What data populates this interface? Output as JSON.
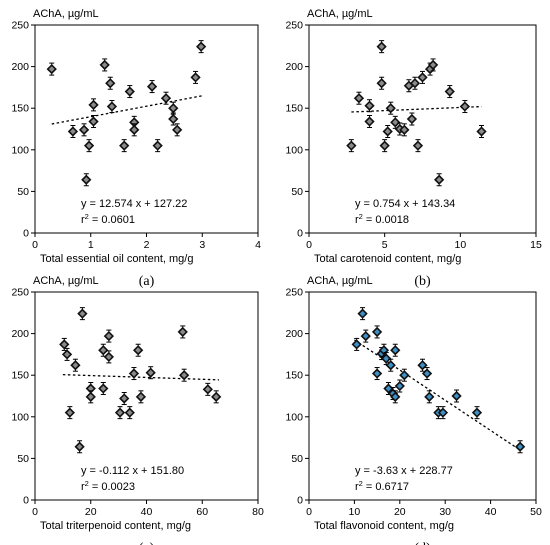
{
  "chart_data": [
    {
      "type": "scatter",
      "panel_label": "(a)",
      "ylabel": "AChA, µg/mL",
      "xlabel": "Total essential oil content, mg/g",
      "xlim": [
        0,
        4
      ],
      "ylim": [
        0,
        250
      ],
      "xticks": [
        "0",
        "1",
        "2",
        "3",
        "4"
      ],
      "yticks": [
        "0",
        "50",
        "100",
        "150",
        "200",
        "250"
      ],
      "marker_color": "#8a8a8a",
      "equation": "y = 12.574 x + 127.22",
      "r2_label": "r",
      "r2_value": " = 0.0601",
      "trend": {
        "slope": 12.574,
        "intercept": 127.22,
        "x_from": 0.3,
        "x_to": 3.0
      },
      "points": [
        {
          "x": 0.3,
          "y": 197
        },
        {
          "x": 0.68,
          "y": 122
        },
        {
          "x": 0.88,
          "y": 124
        },
        {
          "x": 0.92,
          "y": 64
        },
        {
          "x": 0.97,
          "y": 105
        },
        {
          "x": 1.05,
          "y": 154
        },
        {
          "x": 1.05,
          "y": 134
        },
        {
          "x": 1.25,
          "y": 202
        },
        {
          "x": 1.35,
          "y": 180
        },
        {
          "x": 1.38,
          "y": 152
        },
        {
          "x": 1.6,
          "y": 105
        },
        {
          "x": 1.7,
          "y": 170
        },
        {
          "x": 1.78,
          "y": 133
        },
        {
          "x": 1.78,
          "y": 124
        },
        {
          "x": 2.1,
          "y": 176
        },
        {
          "x": 2.2,
          "y": 105
        },
        {
          "x": 2.35,
          "y": 162
        },
        {
          "x": 2.48,
          "y": 150
        },
        {
          "x": 2.48,
          "y": 137
        },
        {
          "x": 2.55,
          "y": 124
        },
        {
          "x": 2.88,
          "y": 187
        },
        {
          "x": 2.98,
          "y": 224
        }
      ]
    },
    {
      "type": "scatter",
      "panel_label": "(b)",
      "ylabel": "AChA, µg/mL",
      "xlabel": "Total carotenoid content, mg/g",
      "xlim": [
        0,
        15
      ],
      "ylim": [
        0,
        250
      ],
      "xticks": [
        "0",
        "5",
        "10",
        "15"
      ],
      "yticks": [
        "0",
        "50",
        "100",
        "150",
        "200",
        "250"
      ],
      "marker_color": "#8a8a8a",
      "equation": "y = 0.754 x + 143.34",
      "r2_label": "r",
      "r2_value": " = 0.0018",
      "trend": {
        "slope": 0.754,
        "intercept": 143.34,
        "x_from": 2.8,
        "x_to": 11.4
      },
      "points": [
        {
          "x": 2.8,
          "y": 105
        },
        {
          "x": 3.3,
          "y": 162
        },
        {
          "x": 4.0,
          "y": 153
        },
        {
          "x": 4.0,
          "y": 134
        },
        {
          "x": 4.8,
          "y": 180
        },
        {
          "x": 4.8,
          "y": 224
        },
        {
          "x": 5.0,
          "y": 105
        },
        {
          "x": 5.2,
          "y": 122
        },
        {
          "x": 5.4,
          "y": 150
        },
        {
          "x": 5.7,
          "y": 133
        },
        {
          "x": 6.0,
          "y": 125
        },
        {
          "x": 6.3,
          "y": 124
        },
        {
          "x": 6.6,
          "y": 177
        },
        {
          "x": 6.8,
          "y": 137
        },
        {
          "x": 7.0,
          "y": 180
        },
        {
          "x": 7.2,
          "y": 105
        },
        {
          "x": 7.5,
          "y": 187
        },
        {
          "x": 8.0,
          "y": 197
        },
        {
          "x": 8.2,
          "y": 202
        },
        {
          "x": 8.6,
          "y": 64
        },
        {
          "x": 9.3,
          "y": 170
        },
        {
          "x": 10.3,
          "y": 152
        },
        {
          "x": 11.4,
          "y": 122
        }
      ]
    },
    {
      "type": "scatter",
      "panel_label": "(c)",
      "ylabel": "AChA, µg/mL",
      "xlabel": "Total triterpenoid content, mg/g",
      "xlim": [
        0,
        80
      ],
      "ylim": [
        0,
        250
      ],
      "xticks": [
        "0",
        "20",
        "40",
        "60",
        "80"
      ],
      "yticks": [
        "0",
        "50",
        "100",
        "150",
        "200",
        "250"
      ],
      "marker_color": "#8a8a8a",
      "equation": "y = -0.112 x + 151.80",
      "r2_label": "r",
      "r2_value": " = 0.0023",
      "trend": {
        "slope": -0.112,
        "intercept": 151.8,
        "x_from": 10,
        "x_to": 66
      },
      "points": [
        {
          "x": 10.5,
          "y": 187
        },
        {
          "x": 11.5,
          "y": 175
        },
        {
          "x": 12.5,
          "y": 105
        },
        {
          "x": 14.5,
          "y": 162
        },
        {
          "x": 16.0,
          "y": 64
        },
        {
          "x": 17.0,
          "y": 224
        },
        {
          "x": 20.0,
          "y": 134
        },
        {
          "x": 20.0,
          "y": 124
        },
        {
          "x": 24.5,
          "y": 180
        },
        {
          "x": 24.5,
          "y": 134
        },
        {
          "x": 26.5,
          "y": 197
        },
        {
          "x": 26.5,
          "y": 172
        },
        {
          "x": 30.5,
          "y": 105
        },
        {
          "x": 32.0,
          "y": 122
        },
        {
          "x": 34.0,
          "y": 105
        },
        {
          "x": 35.5,
          "y": 152
        },
        {
          "x": 37.0,
          "y": 180
        },
        {
          "x": 38.0,
          "y": 124
        },
        {
          "x": 41.5,
          "y": 153
        },
        {
          "x": 53.0,
          "y": 202
        },
        {
          "x": 53.5,
          "y": 150
        },
        {
          "x": 62.0,
          "y": 133
        },
        {
          "x": 65.0,
          "y": 124
        }
      ]
    },
    {
      "type": "scatter",
      "panel_label": "(d)",
      "ylabel": "AChA, µg/mL",
      "xlabel": "Total flavonoid content, mg/g",
      "xlim": [
        0,
        50
      ],
      "ylim": [
        0,
        250
      ],
      "xticks": [
        "0",
        "10",
        "20",
        "30",
        "40",
        "50"
      ],
      "yticks": [
        "0",
        "50",
        "100",
        "150",
        "200",
        "250"
      ],
      "marker_color": "#3d8fc4",
      "equation": "y = -3.63 x + 228.77",
      "r2_label": "r",
      "r2_value": " = 0.6717",
      "trend": {
        "slope": -3.63,
        "intercept": 228.77,
        "x_from": 10,
        "x_to": 46.5
      },
      "points": [
        {
          "x": 10.5,
          "y": 187
        },
        {
          "x": 11.8,
          "y": 224
        },
        {
          "x": 12.5,
          "y": 197
        },
        {
          "x": 15.0,
          "y": 202
        },
        {
          "x": 15.0,
          "y": 152
        },
        {
          "x": 16.0,
          "y": 176
        },
        {
          "x": 16.5,
          "y": 180
        },
        {
          "x": 17.0,
          "y": 170
        },
        {
          "x": 17.5,
          "y": 134
        },
        {
          "x": 18.0,
          "y": 162
        },
        {
          "x": 18.5,
          "y": 128
        },
        {
          "x": 19.0,
          "y": 180
        },
        {
          "x": 19.0,
          "y": 124
        },
        {
          "x": 20.0,
          "y": 137
        },
        {
          "x": 21.0,
          "y": 150
        },
        {
          "x": 25.0,
          "y": 162
        },
        {
          "x": 26.0,
          "y": 152
        },
        {
          "x": 26.5,
          "y": 124
        },
        {
          "x": 28.5,
          "y": 105
        },
        {
          "x": 29.5,
          "y": 105
        },
        {
          "x": 32.5,
          "y": 125
        },
        {
          "x": 37.0,
          "y": 105
        },
        {
          "x": 46.5,
          "y": 64
        }
      ]
    }
  ]
}
